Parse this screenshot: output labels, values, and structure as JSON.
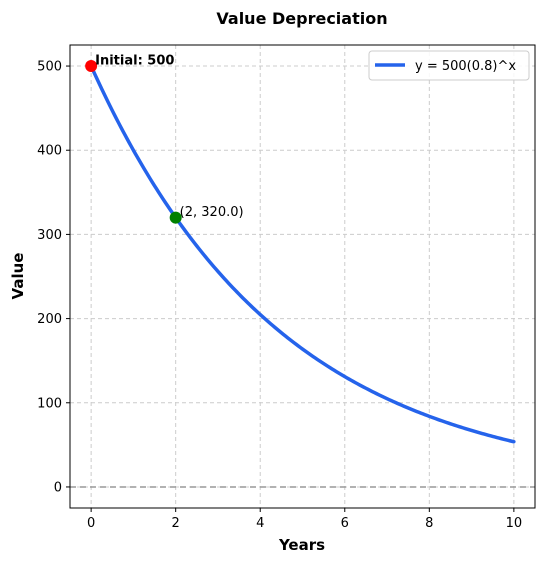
{
  "chart_data": {
    "type": "line",
    "title": "Value Depreciation",
    "xlabel": "Years",
    "ylabel": "Value",
    "xlim": [
      -0.5,
      10.5
    ],
    "ylim": [
      -25,
      525
    ],
    "xticks": [
      0,
      2,
      4,
      6,
      8,
      10
    ],
    "yticks": [
      0,
      100,
      200,
      300,
      400,
      500
    ],
    "grid": true,
    "legend_position": "top-right",
    "series": [
      {
        "name": "y = 500(0.8)^x",
        "color": "#2563eb",
        "x": [
          0,
          0.5,
          1,
          1.5,
          2,
          2.5,
          3,
          3.5,
          4,
          4.5,
          5,
          5.5,
          6,
          6.5,
          7,
          7.5,
          8,
          8.5,
          9,
          9.5,
          10
        ],
        "y": [
          500,
          447.21,
          400,
          357.77,
          320,
          286.22,
          256,
          228.97,
          204.8,
          183.18,
          163.84,
          146.54,
          131.07,
          117.23,
          104.86,
          93.79,
          83.89,
          75.03,
          67.11,
          60.03,
          53.69
        ]
      }
    ],
    "reference_line": {
      "y": 0,
      "color": "#999999"
    },
    "points": [
      {
        "x": 0,
        "y": 500,
        "color": "#ff0000",
        "label": "Initial: 500",
        "bold": true
      },
      {
        "x": 2,
        "y": 320,
        "color": "#008000",
        "label": "(2, 320.0)",
        "bold": false
      }
    ]
  }
}
